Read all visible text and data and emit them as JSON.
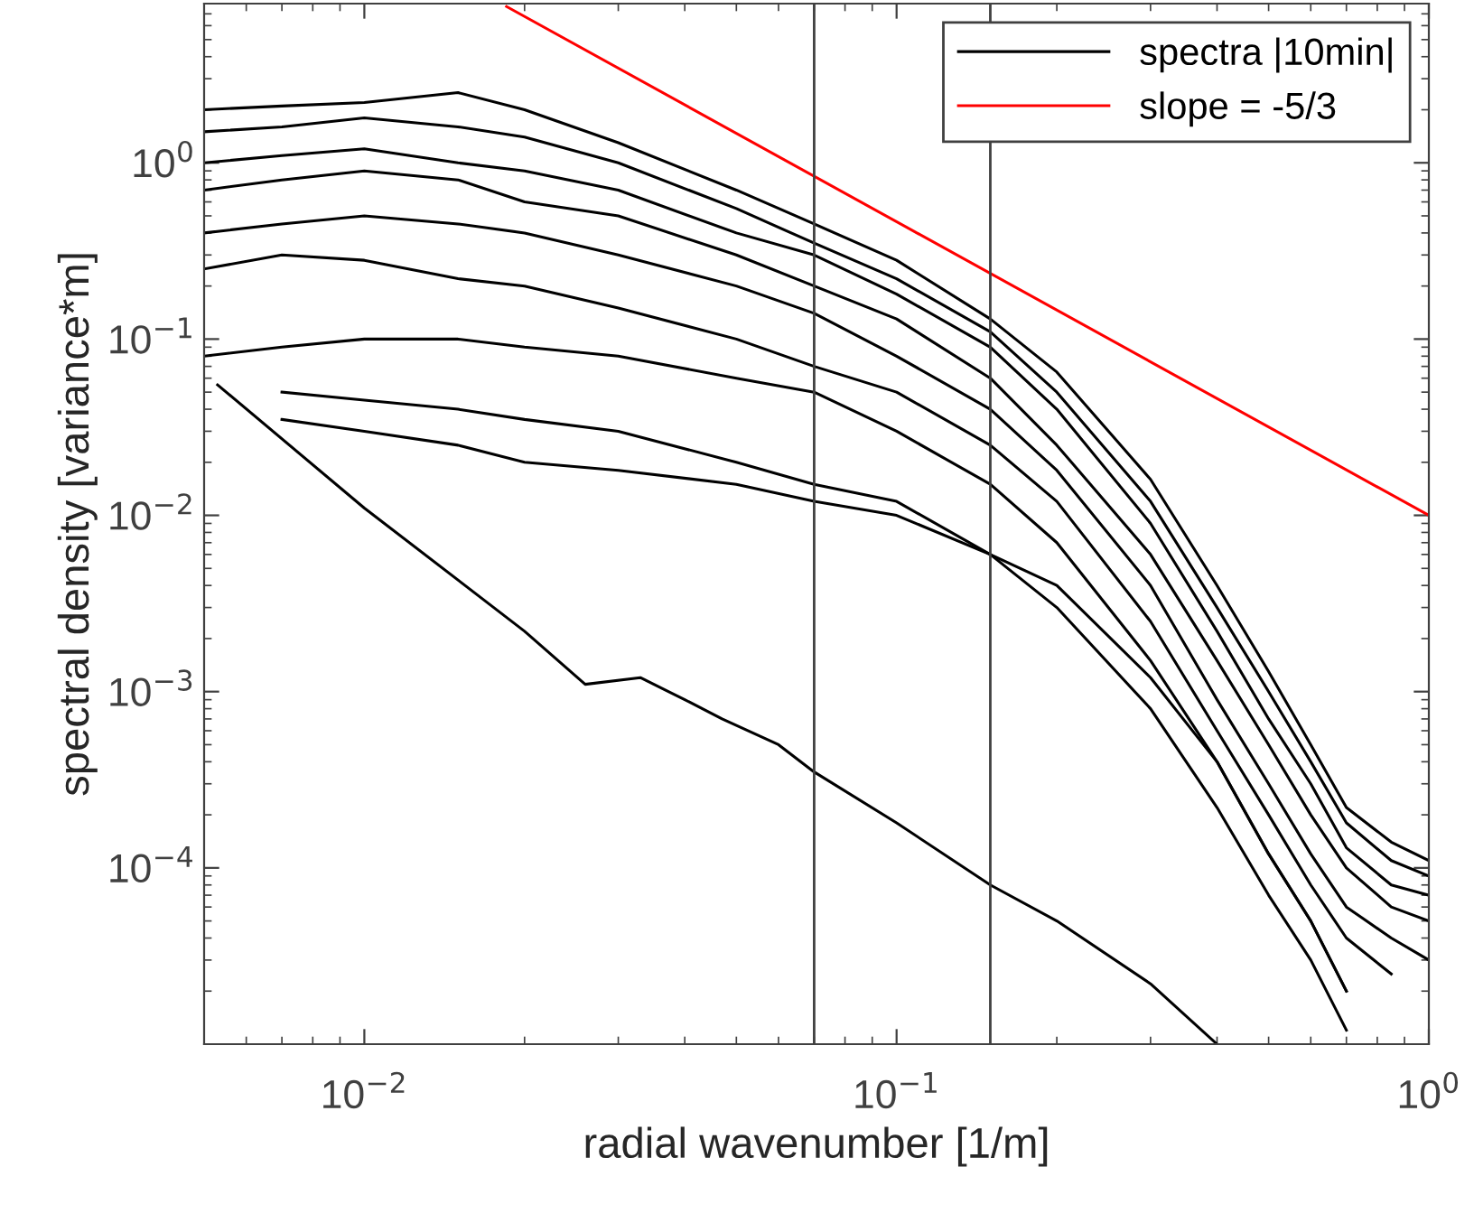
{
  "chart_data": {
    "type": "line",
    "xlabel": "radial wavenumber [1/m]",
    "ylabel": "spectral density [variance*m]",
    "log": "xy",
    "grid": false,
    "legend": "top right",
    "marker": "none",
    "line_style": "solid",
    "xlim": [
      0.005,
      1
    ],
    "ylim": [
      1e-05,
      8
    ],
    "xticks": [
      {
        "value": 0.01,
        "label": "10$^{−2}$"
      },
      {
        "value": 0.1,
        "label": "10$^{−1}$"
      },
      {
        "value": 1,
        "label": "10$^{0}$"
      }
    ],
    "yticks": [
      {
        "value": 0.0001,
        "label": "10$^{−4}$"
      },
      {
        "value": 0.001,
        "label": "10$^{−3}$"
      },
      {
        "value": 0.01,
        "label": "10$^{−2}$"
      },
      {
        "value": 0.1,
        "label": "10$^{−1}$"
      },
      {
        "value": 1,
        "label": "10$^{0}$"
      }
    ],
    "x": [
      0.005,
      0.007,
      0.01,
      0.015,
      0.02,
      0.03,
      0.05,
      0.07,
      0.1,
      0.15,
      0.2,
      0.3,
      0.4,
      0.5,
      0.6,
      0.7,
      0.85,
      1.0
    ],
    "ref_lines": [
      {
        "axis": "x",
        "value": 0.07,
        "color": "#404040"
      },
      {
        "axis": "x",
        "value": 0.15,
        "color": "#404040"
      }
    ],
    "series": [
      {
        "name": "spectra |10min|",
        "color": "#000000",
        "values": [
          2.0,
          2.1,
          2.2,
          2.5,
          2.0,
          1.3,
          0.7,
          0.45,
          0.28,
          0.13,
          0.065,
          0.016,
          0.004,
          0.0013,
          0.0005,
          0.00022,
          0.00014,
          0.00011
        ]
      },
      {
        "color": "#000000",
        "values": [
          1.5,
          1.6,
          1.8,
          1.6,
          1.4,
          1.0,
          0.55,
          0.35,
          0.22,
          0.11,
          0.05,
          0.012,
          0.003,
          0.001,
          0.0004,
          0.00018,
          0.00011,
          9e-05
        ]
      },
      {
        "color": "#000000",
        "values": [
          1.0,
          1.1,
          1.2,
          1.0,
          0.9,
          0.7,
          0.4,
          0.3,
          0.18,
          0.09,
          0.04,
          0.009,
          0.0022,
          0.0007,
          0.0003,
          0.00013,
          8e-05,
          7e-05
        ]
      },
      {
        "color": "#000000",
        "values": [
          0.7,
          0.8,
          0.9,
          0.8,
          0.6,
          0.5,
          0.3,
          0.2,
          0.13,
          0.06,
          0.025,
          0.006,
          0.0015,
          0.0005,
          0.0002,
          0.0001,
          6e-05,
          5e-05
        ]
      },
      {
        "color": "#000000",
        "values": [
          0.4,
          0.45,
          0.5,
          0.45,
          0.4,
          0.3,
          0.2,
          0.14,
          0.08,
          0.04,
          0.018,
          0.004,
          0.0009,
          0.0003,
          0.00012,
          6e-05,
          4e-05,
          3e-05
        ]
      },
      {
        "color": "#000000",
        "values": [
          0.25,
          0.3,
          0.28,
          0.22,
          0.2,
          0.15,
          0.1,
          0.07,
          0.05,
          0.025,
          0.012,
          0.0025,
          0.0006,
          0.0002,
          8e-05,
          4e-05,
          2.5e-05,
          null
        ]
      },
      {
        "color": "#000000",
        "values": [
          0.08,
          0.09,
          0.1,
          0.1,
          0.09,
          0.08,
          0.06,
          0.05,
          0.03,
          0.015,
          0.007,
          0.0015,
          0.0004,
          0.00012,
          5e-05,
          2e-05,
          null,
          null
        ]
      },
      {
        "color": "#000000",
        "values": [
          null,
          0.05,
          0.045,
          0.04,
          0.035,
          0.03,
          0.02,
          0.015,
          0.012,
          0.006,
          0.003,
          0.0008,
          0.00022,
          7e-05,
          3e-05,
          1.2e-05,
          null,
          null
        ]
      },
      {
        "color": "#000000",
        "values": [
          null,
          0.035,
          0.03,
          0.025,
          0.02,
          0.018,
          0.015,
          0.012,
          0.01,
          0.006,
          0.004,
          0.0012,
          0.0004,
          0.00012,
          5e-05,
          2e-05,
          null,
          null
        ]
      },
      {
        "color": "#000000",
        "x": [
          0.0053,
          0.01,
          0.02,
          0.026,
          0.033,
          0.04,
          0.047,
          0.06,
          0.07,
          0.1,
          0.15,
          0.2,
          0.3,
          0.4
        ],
        "values": [
          0.055,
          0.011,
          0.0022,
          0.0011,
          0.0012,
          0.0009,
          0.0007,
          0.0005,
          0.00035,
          0.00018,
          8e-05,
          5e-05,
          2.2e-05,
          1e-05
        ]
      },
      {
        "name": "slope = -5/3",
        "color": "#ff0000",
        "x": [
          0.0185,
          1
        ],
        "values": [
          7.7,
          0.01
        ]
      }
    ]
  }
}
